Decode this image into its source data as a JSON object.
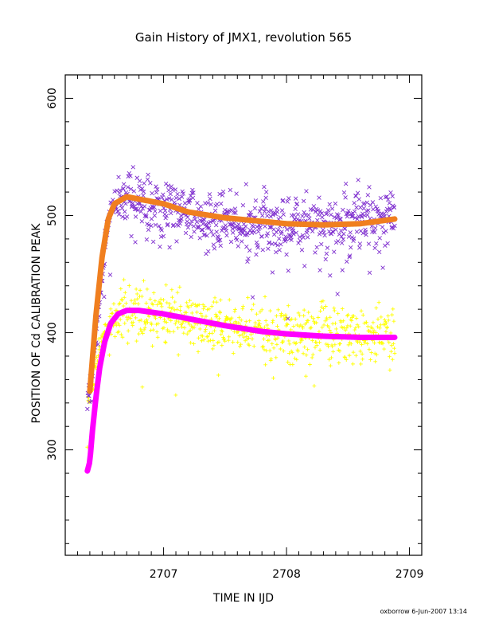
{
  "chart_data": {
    "type": "scatter",
    "title": "Gain History of JMX1, revolution 565",
    "xlabel": "TIME IN IJD",
    "ylabel": "POSITION OF Cd CALIBRATION PEAK",
    "xlim": [
      2706.2,
      2709.1
    ],
    "ylim": [
      210,
      620
    ],
    "xticks": [
      2707,
      2708,
      2709
    ],
    "xtick_labels": [
      "2707",
      "2708",
      "2709"
    ],
    "yticks": [
      300,
      400,
      500,
      600
    ],
    "ytick_labels": [
      "300",
      "400",
      "500",
      "600"
    ],
    "grid": false,
    "legend": "none",
    "footer": "oxborrow  6-Jun-2007 13:14",
    "series": [
      {
        "marker": "x",
        "color": "#7f2fcf",
        "x_range": [
          2706.38,
          2708.88
        ],
        "points_described": "noisy scatter; rises from about 345 at start to about 515 near 2706.7, then settles around 490-500",
        "samples": [
          [
            2706.4,
            350
          ],
          [
            2706.45,
            400
          ],
          [
            2706.5,
            450
          ],
          [
            2706.55,
            495
          ],
          [
            2706.6,
            515
          ],
          [
            2706.7,
            520
          ],
          [
            2706.8,
            510
          ],
          [
            2707.0,
            505
          ],
          [
            2707.2,
            500
          ],
          [
            2707.5,
            495
          ],
          [
            2707.8,
            495
          ],
          [
            2708.0,
            492
          ],
          [
            2708.3,
            490
          ],
          [
            2708.6,
            495
          ],
          [
            2708.88,
            500
          ]
        ]
      },
      {
        "marker": "curve",
        "color": "#f07f1f",
        "samples": [
          [
            2706.4,
            350
          ],
          [
            2706.45,
            415
          ],
          [
            2706.5,
            465
          ],
          [
            2706.55,
            497
          ],
          [
            2706.6,
            510
          ],
          [
            2706.7,
            516
          ],
          [
            2706.8,
            514
          ],
          [
            2707.0,
            510
          ],
          [
            2707.2,
            503
          ],
          [
            2707.5,
            498
          ],
          [
            2707.8,
            495
          ],
          [
            2708.0,
            493
          ],
          [
            2708.3,
            492
          ],
          [
            2708.6,
            493
          ],
          [
            2708.88,
            497
          ]
        ]
      },
      {
        "marker": "+",
        "color": "#ffff00",
        "x_range": [
          2706.38,
          2708.88
        ],
        "points_described": "noisy scatter; rises from about 340 at start to about 420 near 2706.65, then settles around 395-405",
        "samples": [
          [
            2706.4,
            345
          ],
          [
            2706.5,
            395
          ],
          [
            2706.6,
            415
          ],
          [
            2706.7,
            420
          ],
          [
            2706.9,
            418
          ],
          [
            2707.2,
            412
          ],
          [
            2707.5,
            405
          ],
          [
            2707.8,
            402
          ],
          [
            2708.0,
            400
          ],
          [
            2708.3,
            398
          ],
          [
            2708.6,
            398
          ],
          [
            2708.88,
            398
          ]
        ]
      },
      {
        "marker": "curve",
        "color": "#ff00ff",
        "samples": [
          [
            2706.38,
            282
          ],
          [
            2706.4,
            290
          ],
          [
            2706.42,
            315
          ],
          [
            2706.45,
            345
          ],
          [
            2706.48,
            370
          ],
          [
            2706.52,
            392
          ],
          [
            2706.57,
            408
          ],
          [
            2706.63,
            416
          ],
          [
            2706.7,
            419
          ],
          [
            2706.8,
            419
          ],
          [
            2707.0,
            416
          ],
          [
            2707.2,
            412
          ],
          [
            2707.5,
            406
          ],
          [
            2707.8,
            401
          ],
          [
            2708.0,
            399
          ],
          [
            2708.3,
            397
          ],
          [
            2708.6,
            396
          ],
          [
            2708.88,
            396
          ]
        ]
      }
    ]
  }
}
